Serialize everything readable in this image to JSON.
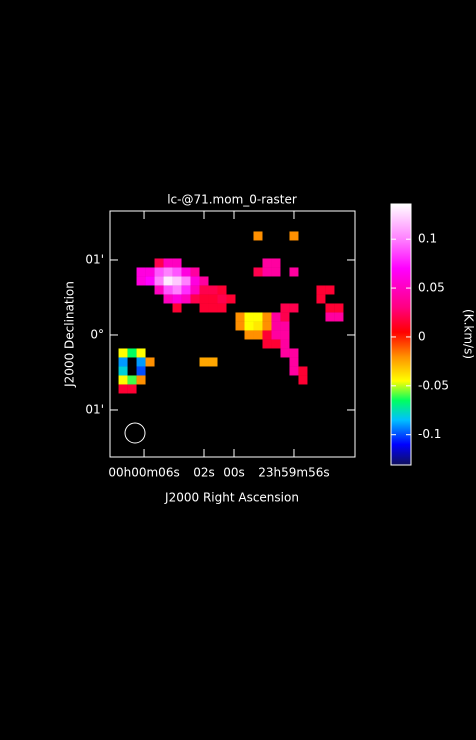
{
  "chart_data": {
    "type": "raster",
    "title": "lc-@71.mom_0-raster",
    "x_label": "J2000 Right Ascension",
    "y_label": "J2000 Declination",
    "colorbar_label": "(K.km/s)",
    "xlim": [
      8.27,
      -8.07
    ],
    "xticks": [
      {
        "value": 6,
        "label": "00h00m06s"
      },
      {
        "value": 2,
        "label": "02s"
      },
      {
        "value": 0,
        "label": "00s"
      },
      {
        "value": -4,
        "label": "23h59m56s"
      }
    ],
    "ylim": [
      -1.627,
      1.653
    ],
    "yticks": [
      {
        "value": 1,
        "label": "01'"
      },
      {
        "value": 0,
        "label": "0°"
      },
      {
        "value": -1,
        "label": "01'"
      }
    ],
    "clim": [
      -0.131,
      0.136
    ],
    "cticks": [
      0.1,
      0.05,
      0,
      -0.05,
      -0.1
    ],
    "colormap": [
      [
        -0.131,
        "#10105a"
      ],
      [
        -0.11,
        "#0000ff"
      ],
      [
        -0.085,
        "#00c0ff"
      ],
      [
        -0.065,
        "#00ff60"
      ],
      [
        -0.045,
        "#ffff00"
      ],
      [
        -0.02,
        "#ff9000"
      ],
      [
        0.005,
        "#ff0000"
      ],
      [
        0.03,
        "#ff0080"
      ],
      [
        0.07,
        "#ff00ff"
      ],
      [
        0.1,
        "#ff80ff"
      ],
      [
        0.136,
        "#ffffff"
      ]
    ],
    "cells": {
      "x": [
        -1.6,
        -4.0,
        5.0,
        4.4,
        3.8,
        -2.2,
        -2.8,
        6.2,
        5.6,
        5.0,
        4.4,
        3.8,
        3.2,
        2.6,
        -1.6,
        -2.2,
        -2.8,
        -4.0,
        6.2,
        5.6,
        5.0,
        4.4,
        3.8,
        3.2,
        2.6,
        2.0,
        5.0,
        4.4,
        3.8,
        3.2,
        2.6,
        2.0,
        1.4,
        0.8,
        -5.8,
        -6.4,
        4.4,
        3.8,
        3.2,
        2.6,
        2.0,
        1.4,
        0.8,
        0.2,
        -5.8,
        3.8,
        2.0,
        1.4,
        0.8,
        -3.4,
        -4.0,
        -6.4,
        -7.0,
        -0.4,
        -1.0,
        -1.6,
        -2.2,
        -2.8,
        -3.4,
        -6.4,
        -7.0,
        -0.4,
        -1.0,
        -1.6,
        -2.2,
        -2.8,
        -3.4,
        -1.0,
        -1.6,
        -2.2,
        -2.8,
        -3.4,
        -2.2,
        -2.8,
        -3.4,
        7.4,
        6.8,
        6.2,
        -3.4,
        -4.0,
        7.4,
        6.2,
        5.6,
        2.0,
        1.4,
        -4.0,
        7.4,
        6.2,
        -4.0,
        -4.6,
        7.4,
        6.8,
        6.2,
        -4.6,
        7.4,
        6.8
      ],
      "y": [
        1.32,
        1.32,
        0.96,
        0.96,
        0.96,
        0.96,
        0.96,
        0.84,
        0.84,
        0.84,
        0.84,
        0.84,
        0.84,
        0.84,
        0.84,
        0.84,
        0.84,
        0.84,
        0.72,
        0.72,
        0.72,
        0.72,
        0.72,
        0.72,
        0.72,
        0.72,
        0.6,
        0.6,
        0.6,
        0.6,
        0.6,
        0.6,
        0.6,
        0.6,
        0.6,
        0.6,
        0.48,
        0.48,
        0.48,
        0.48,
        0.48,
        0.48,
        0.48,
        0.48,
        0.48,
        0.36,
        0.36,
        0.36,
        0.36,
        0.36,
        0.36,
        0.36,
        0.36,
        0.24,
        0.24,
        0.24,
        0.24,
        0.24,
        0.24,
        0.24,
        0.24,
        0.12,
        0.12,
        0.12,
        0.12,
        0.12,
        0.12,
        0,
        0,
        0,
        0,
        0,
        -0.12,
        -0.12,
        -0.12,
        -0.24,
        -0.24,
        -0.24,
        -0.24,
        -0.24,
        -0.36,
        -0.36,
        -0.36,
        -0.36,
        -0.36,
        -0.36,
        -0.48,
        -0.48,
        -0.48,
        -0.48,
        -0.6,
        -0.6,
        -0.6,
        -0.6,
        -0.72,
        -0.72
      ],
      "values": [
        -0.02,
        -0.02,
        0.02,
        0.05,
        0.05,
        0.04,
        0.04,
        0.06,
        0.06,
        0.09,
        0.1,
        0.09,
        0.06,
        0.04,
        0.02,
        0.04,
        0.04,
        0.04,
        0.06,
        0.07,
        0.1,
        0.13,
        0.12,
        0.1,
        0.06,
        0.04,
        0.05,
        0.09,
        0.1,
        0.08,
        0.05,
        0.02,
        0.02,
        0.015,
        0.015,
        0.015,
        0.05,
        0.06,
        0.05,
        0.02,
        0.015,
        0.015,
        0.02,
        0.015,
        0.015,
        0.015,
        0.015,
        0.015,
        0.015,
        0.02,
        0.02,
        0.015,
        0.015,
        -0.02,
        -0.045,
        -0.045,
        -0.02,
        0.04,
        0.02,
        0.04,
        0.04,
        -0.02,
        -0.045,
        -0.04,
        -0.02,
        0.04,
        0.04,
        -0.02,
        -0.02,
        0.015,
        0.04,
        0.04,
        0.015,
        0.015,
        0.04,
        -0.045,
        -0.065,
        -0.045,
        0.04,
        0.04,
        -0.09,
        -0.09,
        -0.02,
        -0.025,
        -0.025,
        0.04,
        -0.08,
        -0.1,
        0.04,
        0.015,
        -0.045,
        -0.06,
        -0.02,
        0.015,
        0.015,
        0.015
      ]
    }
  }
}
